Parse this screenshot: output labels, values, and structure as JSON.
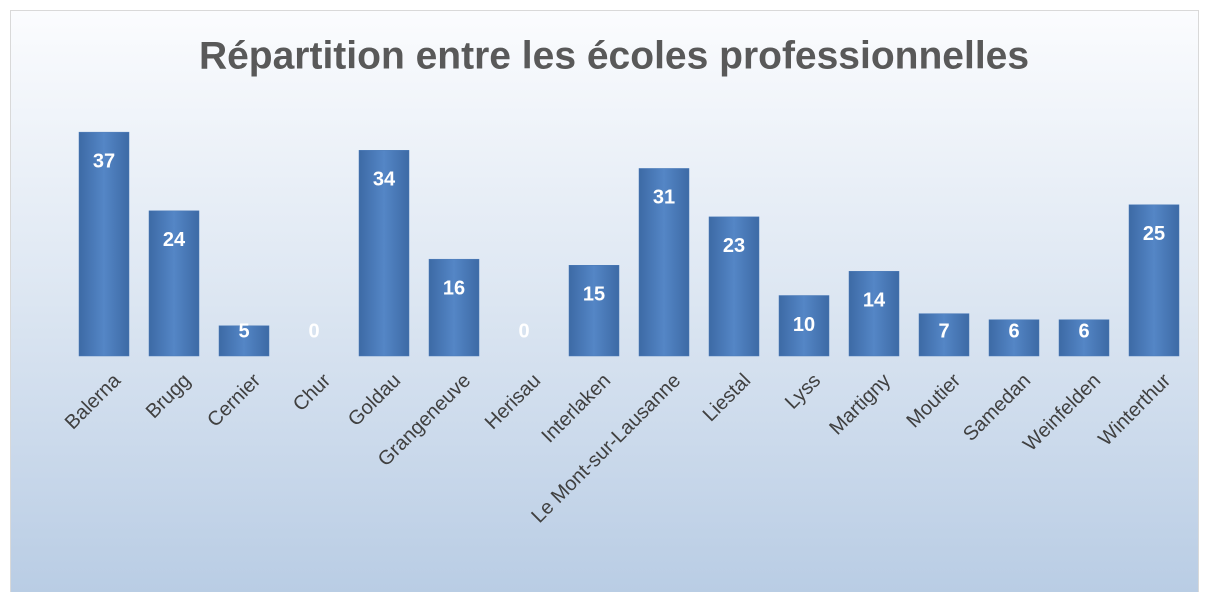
{
  "chart_data": {
    "type": "bar",
    "title": "Répartition entre les écoles professionnelles",
    "categories": [
      "Balerna",
      "Brugg",
      "Cernier",
      "Chur",
      "Goldau",
      "Grangeneuve",
      "Herisau",
      "Interlaken",
      "Le Mont-sur-Lausanne",
      "Liestal",
      "Lyss",
      "Martigny",
      "Moutier",
      "Samedan",
      "Weinfelden",
      "Winterthur"
    ],
    "values": [
      37,
      24,
      5,
      0,
      34,
      16,
      0,
      15,
      31,
      23,
      10,
      14,
      7,
      6,
      6,
      25
    ],
    "color": "#4a7ab8"
  }
}
